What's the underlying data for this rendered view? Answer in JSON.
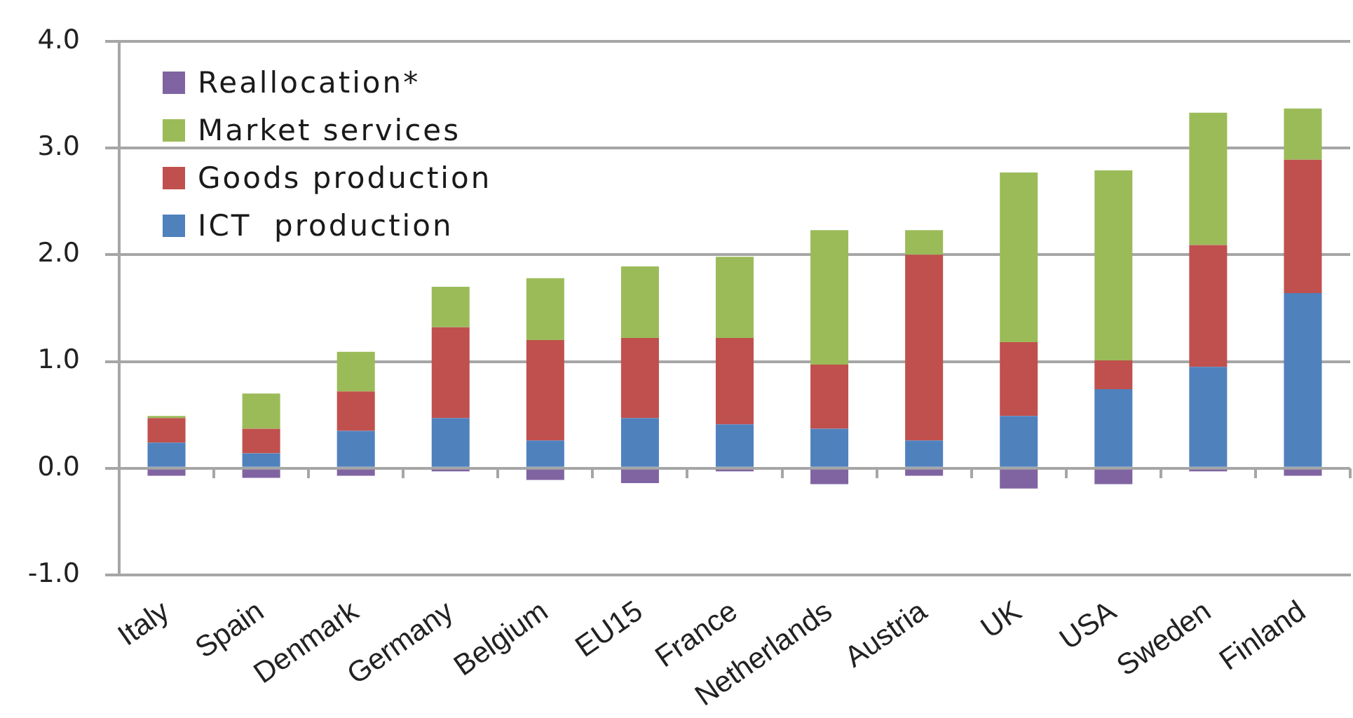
{
  "chart_data": {
    "type": "bar",
    "stacked": true,
    "categories": [
      "Italy",
      "Spain",
      "Denmark",
      "Germany",
      "Belgium",
      "EU15",
      "France",
      "Netherlands",
      "Austria",
      "UK",
      "USA",
      "Sweden",
      "Finland"
    ],
    "series": [
      {
        "name": "ICT  production",
        "color": "#4f81bd",
        "values": [
          0.24,
          0.14,
          0.35,
          0.47,
          0.26,
          0.47,
          0.41,
          0.37,
          0.26,
          0.49,
          0.74,
          0.95,
          1.64
        ]
      },
      {
        "name": "Goods production",
        "color": "#c0504d",
        "values": [
          0.23,
          0.23,
          0.37,
          0.85,
          0.94,
          0.75,
          0.81,
          0.6,
          1.74,
          0.69,
          0.27,
          1.14,
          1.25
        ]
      },
      {
        "name": "Market services",
        "color": "#9bbb59",
        "values": [
          0.02,
          0.33,
          0.37,
          0.38,
          0.58,
          0.67,
          0.76,
          1.26,
          0.23,
          1.59,
          1.78,
          1.24,
          0.48
        ]
      },
      {
        "name": "Reallocation*",
        "color": "#8064a2",
        "values": [
          -0.07,
          -0.09,
          -0.07,
          -0.03,
          -0.11,
          -0.14,
          -0.03,
          -0.15,
          -0.07,
          -0.19,
          -0.15,
          -0.03,
          -0.07
        ]
      }
    ],
    "ylim": [
      -1,
      4
    ],
    "yticks": [
      {
        "value": -1,
        "label": "-1.0"
      },
      {
        "value": 0,
        "label": "0.0"
      },
      {
        "value": 1,
        "label": "1.0"
      },
      {
        "value": 2,
        "label": "2.0"
      },
      {
        "value": 3,
        "label": "3.0"
      },
      {
        "value": 4,
        "label": "4.0"
      }
    ],
    "grid": "y",
    "legend": "top left"
  }
}
